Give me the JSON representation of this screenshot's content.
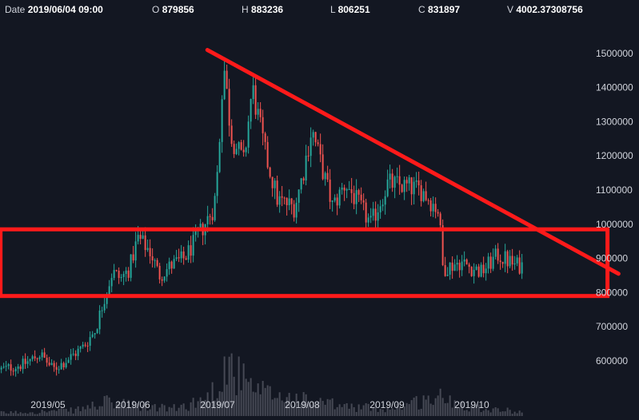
{
  "info": {
    "date_label": "Date",
    "date_value": "2019/06/04 09:00",
    "open_label": "O",
    "open_value": "879856",
    "high_label": "H",
    "high_value": "883236",
    "low_label": "L",
    "low_value": "806251",
    "close_label": "C",
    "close_value": "831897",
    "volume_label": "V",
    "volume_value": "4002.37308756"
  },
  "colors": {
    "background": "#131722",
    "up": "#26a69a",
    "down": "#ef5350",
    "volume": "#5d606b",
    "annotation": "#ff1a1a",
    "text": "#d1d4dc"
  },
  "chart_data": {
    "type": "candlestick",
    "ylim": [
      530000,
      1560000
    ],
    "y_ticks": [
      600000,
      700000,
      800000,
      900000,
      1000000,
      1100000,
      1200000,
      1300000,
      1400000,
      1500000
    ],
    "y_tick_labels": [
      "600000",
      "700000",
      "800000",
      "900000",
      "1000000",
      "1100000",
      "1200000",
      "1300000",
      "1400000",
      "1500000"
    ],
    "x_ticks": [
      "2019/05",
      "2019/06",
      "2019/07",
      "2019/08",
      "2019/09",
      "2019/10"
    ],
    "x_tick_pos": [
      0.0,
      1.0,
      2.0,
      3.0,
      4.0,
      5.0
    ],
    "xlim": [
      -0.56,
      6.7
    ],
    "price_path": [
      [
        -0.56,
        575000
      ],
      [
        -0.3,
        590000
      ],
      [
        -0.1,
        620000
      ],
      [
        0.05,
        575000
      ],
      [
        0.2,
        600000
      ],
      [
        0.4,
        640000
      ],
      [
        0.55,
        690000
      ],
      [
        0.65,
        780000
      ],
      [
        0.75,
        860000
      ],
      [
        0.85,
        840000
      ],
      [
        0.95,
        870000
      ],
      [
        1.05,
        960000
      ],
      [
        1.2,
        920000
      ],
      [
        1.3,
        850000
      ],
      [
        1.45,
        880000
      ],
      [
        1.6,
        900000
      ],
      [
        1.75,
        960000
      ],
      [
        1.95,
        1050000
      ],
      [
        2.0,
        1180000
      ],
      [
        2.06,
        1480000
      ],
      [
        2.15,
        1260000
      ],
      [
        2.3,
        1180000
      ],
      [
        2.4,
        1400000
      ],
      [
        2.55,
        1210000
      ],
      [
        2.7,
        1070000
      ],
      [
        2.9,
        1050000
      ],
      [
        3.0,
        1150000
      ],
      [
        3.1,
        1280000
      ],
      [
        3.25,
        1140000
      ],
      [
        3.35,
        1050000
      ],
      [
        3.5,
        1120000
      ],
      [
        3.65,
        1060000
      ],
      [
        3.8,
        1000000
      ],
      [
        4.0,
        1120000
      ],
      [
        4.2,
        1110000
      ],
      [
        4.4,
        1100000
      ],
      [
        4.6,
        1040000
      ],
      [
        4.65,
        870000
      ],
      [
        4.85,
        890000
      ],
      [
        5.1,
        860000
      ],
      [
        5.3,
        910000
      ],
      [
        5.5,
        880000
      ],
      [
        5.6,
        880000
      ]
    ],
    "volume_path": [
      [
        -0.56,
        0.05
      ],
      [
        0.3,
        0.09
      ],
      [
        0.7,
        0.22
      ],
      [
        1.0,
        0.16
      ],
      [
        1.5,
        0.12
      ],
      [
        1.9,
        0.3
      ],
      [
        2.1,
        0.85
      ],
      [
        2.4,
        0.4
      ],
      [
        3.0,
        0.25
      ],
      [
        3.5,
        0.15
      ],
      [
        4.0,
        0.12
      ],
      [
        4.6,
        0.3
      ],
      [
        5.0,
        0.15
      ],
      [
        5.6,
        0.06
      ]
    ],
    "trendline": [
      [
        1.88,
        1510000
      ],
      [
        6.73,
        855000
      ]
    ],
    "support_box": {
      "x0": -0.56,
      "x1": 6.6,
      "y_top": 985000,
      "y_bottom": 790000
    }
  }
}
